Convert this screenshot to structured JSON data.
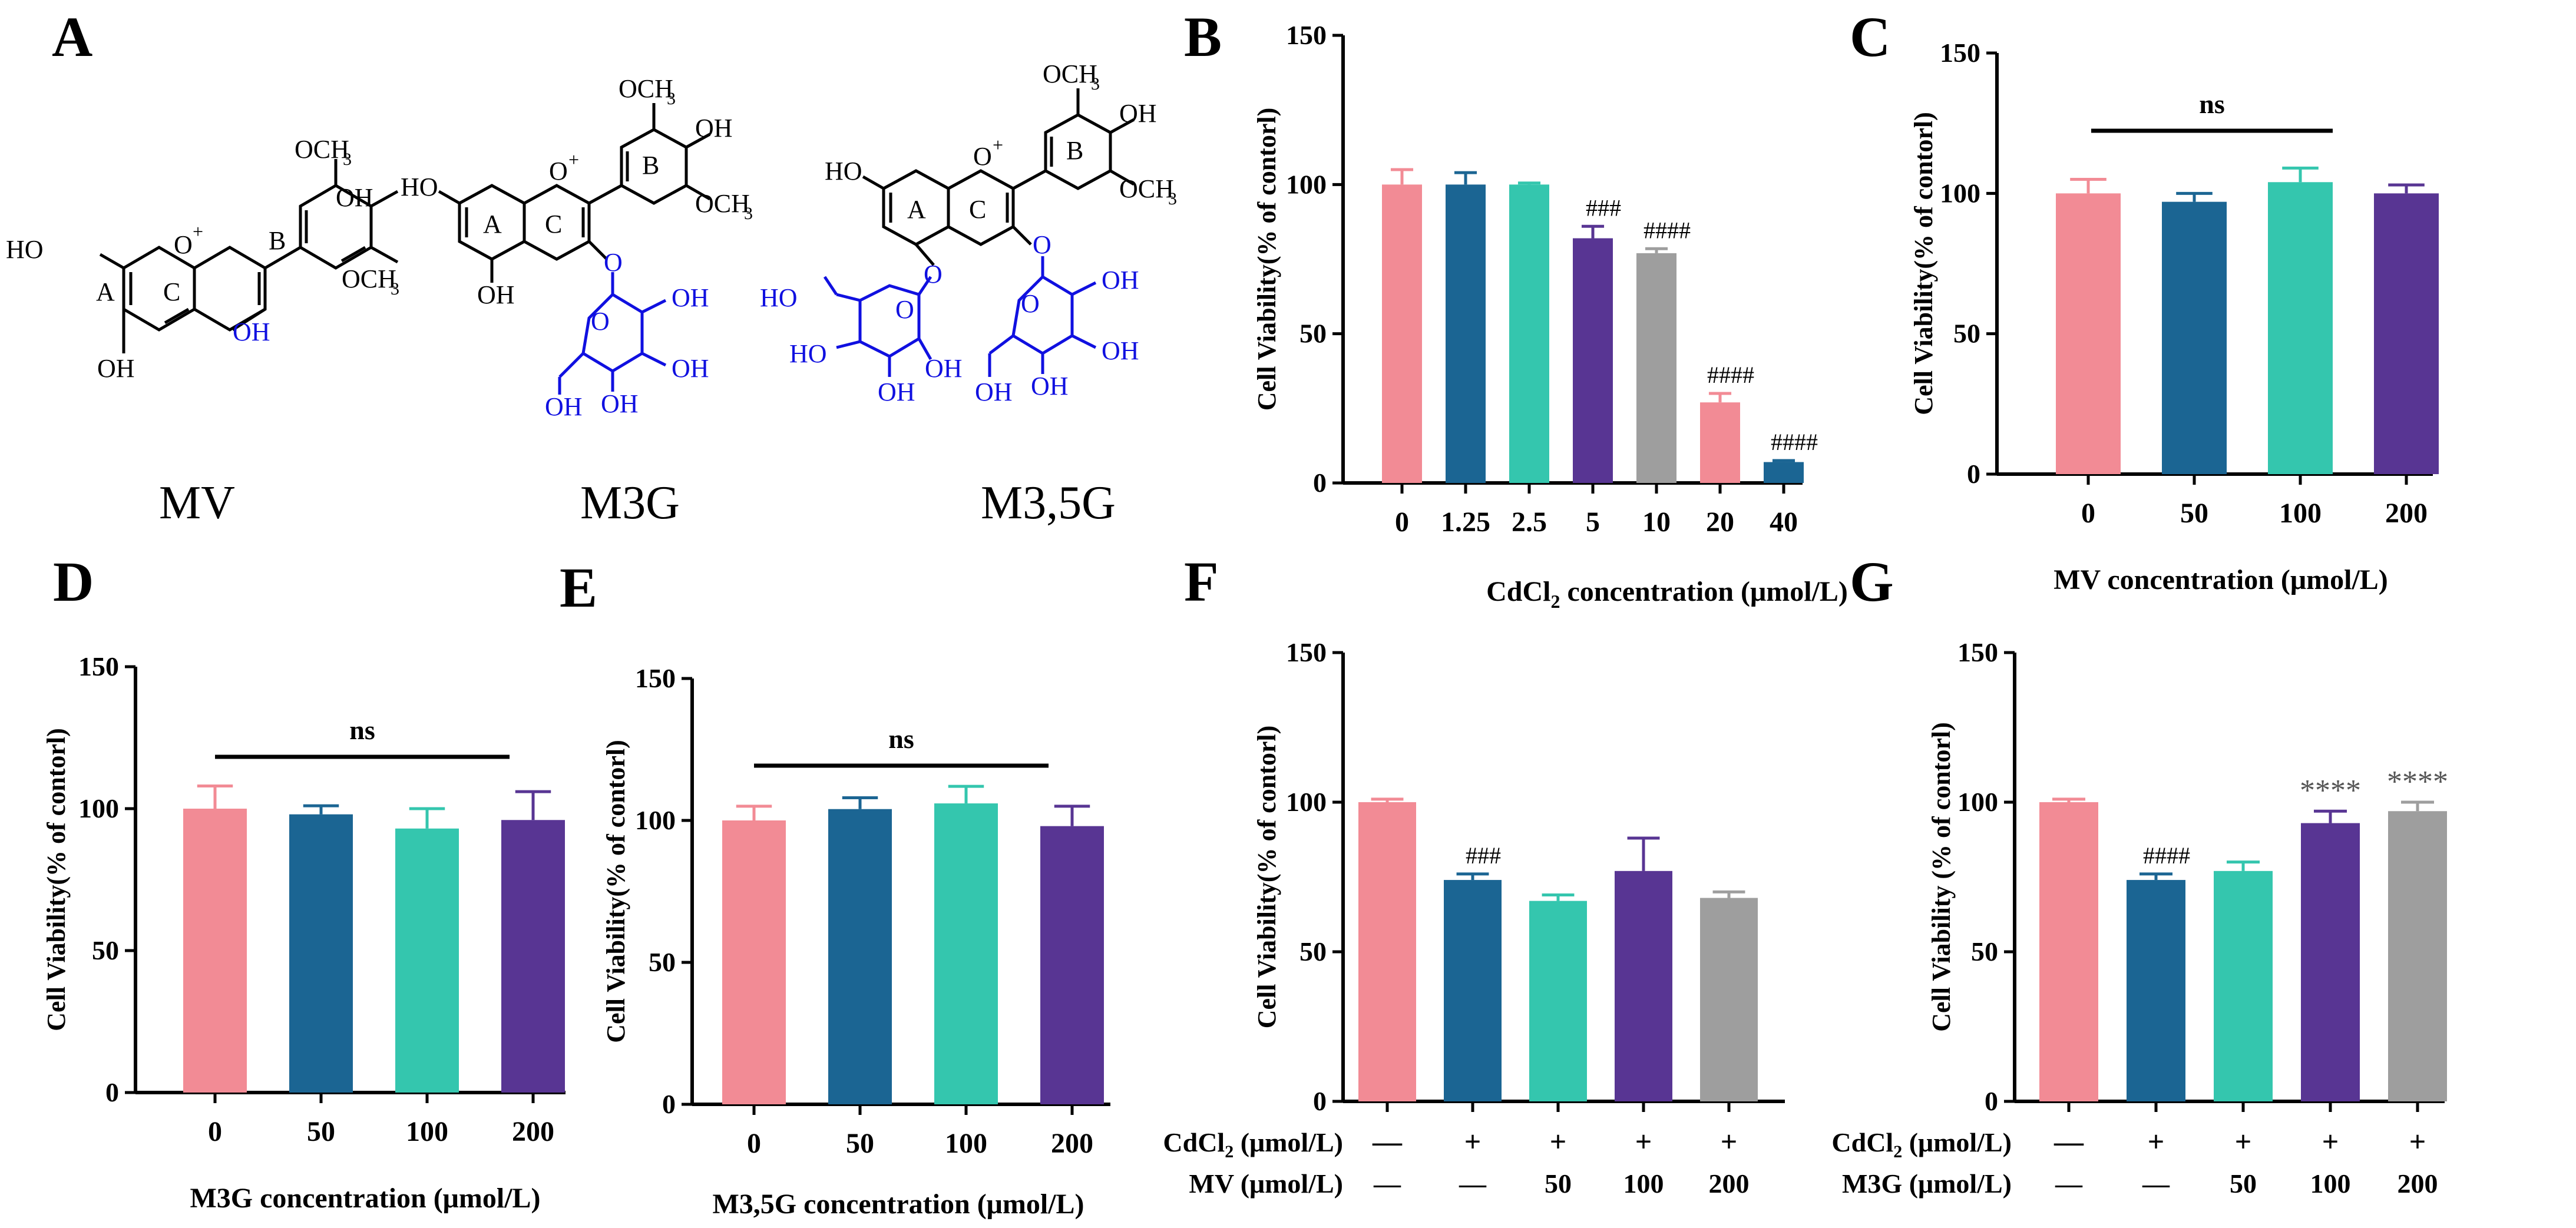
{
  "colors": {
    "pink": "#F28B95",
    "blue": "#1B6593",
    "teal": "#34C6AE",
    "purple": "#583593",
    "grey": "#9E9E9E",
    "axis": "#000000",
    "glycoside": "#1010E0"
  },
  "panel_a": {
    "letter": "A",
    "structures": [
      {
        "name": "MV",
        "atoms": {
          "och3_top": "OCH",
          "och3_top_sub": "3",
          "oh_b": "OH",
          "ho_a": "HO",
          "o_plus": "O",
          "plus": "+",
          "och3_right": "OCH",
          "och3_right_sub": "3",
          "oh_3": "OH",
          "oh_5": "OH",
          "ring_a": "A",
          "ring_b": "B",
          "ring_c": "C"
        }
      },
      {
        "name": "M3G",
        "atoms": {
          "och3_top": "OCH",
          "och3_top_sub": "3",
          "oh_b": "OH",
          "ho_a": "HO",
          "o_plus": "O",
          "plus": "+",
          "och3_right": "OCH",
          "och3_right_sub": "3",
          "oh_5": "OH",
          "o_link": "O",
          "ring_o": "O",
          "oh_1": "OH",
          "oh_2": "OH",
          "oh_3": "OH",
          "oh_4": "OH",
          "ring_a": "A",
          "ring_b": "B",
          "ring_c": "C"
        }
      },
      {
        "name": "M3,5G",
        "atoms": {
          "och3_top": "OCH",
          "och3_top_sub": "3",
          "oh_b": "OH",
          "ho_a": "HO",
          "o_plus": "O",
          "plus": "+",
          "och3_right": "OCH",
          "och3_right_sub": "3",
          "o_link3": "O",
          "o_link5": "O",
          "ring_o1": "O",
          "ring_o2": "O",
          "s1_ho": "HO",
          "s1_oh1": "OH",
          "s1_oh2": "OH",
          "s1_oh3": "HO",
          "s1_oh4": "OH",
          "s2_oh1": "OH",
          "s2_oh2": "OH",
          "s2_oh3": "OH",
          "s2_oh4": "OH",
          "ring_a": "A",
          "ring_b": "B",
          "ring_c": "C"
        }
      }
    ]
  },
  "chart_data": [
    {
      "panel": "B",
      "type": "bar",
      "ylabel": "Cell Viability(% of contorl)",
      "xlabel": "CdCl",
      "xlabel_sub": "2",
      "xlabel_rest": " concentration (μmol/L)",
      "ylim": [
        0,
        150
      ],
      "yticks": [
        "0",
        "50",
        "100",
        "150"
      ],
      "categories": [
        "0",
        "1.25",
        "2.5",
        "5",
        "10",
        "20",
        "40"
      ],
      "values": [
        100,
        100,
        100,
        82,
        77,
        27,
        7
      ],
      "errors": [
        5,
        4,
        0.5,
        4,
        1.5,
        3,
        0.5
      ],
      "colors": [
        "pink",
        "blue",
        "teal",
        "purple",
        "grey",
        "pink",
        "blue"
      ],
      "annotations": [
        "",
        "",
        "",
        "###",
        "####",
        "####",
        "####"
      ]
    },
    {
      "panel": "C",
      "type": "bar",
      "ylabel": "Cell Viability(% of contorl)",
      "xlabel": "MV concentration (μmol/L)",
      "ylim": [
        0,
        150
      ],
      "yticks": [
        "0",
        "50",
        "100",
        "150"
      ],
      "categories": [
        "0",
        "50",
        "100",
        "200"
      ],
      "values": [
        100,
        97,
        104,
        100
      ],
      "errors": [
        5,
        3,
        5,
        3
      ],
      "colors": [
        "pink",
        "blue",
        "teal",
        "purple"
      ],
      "ns": "ns"
    },
    {
      "panel": "D",
      "type": "bar",
      "ylabel": "Cell Viability(% of contorl)",
      "xlabel": "M3G concentration (μmol/L)",
      "ylim": [
        0,
        150
      ],
      "yticks": [
        "0",
        "50",
        "100",
        "150"
      ],
      "categories": [
        "0",
        "50",
        "100",
        "200"
      ],
      "values": [
        100,
        98,
        93,
        96
      ],
      "errors": [
        8,
        3,
        7,
        10
      ],
      "colors": [
        "pink",
        "blue",
        "teal",
        "purple"
      ],
      "ns": "ns"
    },
    {
      "panel": "E",
      "type": "bar",
      "ylabel": "Cell Viability(% of contorl)",
      "xlabel": "M3,5G concentration (μmol/L)",
      "ylim": [
        0,
        150
      ],
      "yticks": [
        "0",
        "50",
        "100",
        "150"
      ],
      "categories": [
        "0",
        "50",
        "100",
        "200"
      ],
      "values": [
        100,
        104,
        106,
        98
      ],
      "errors": [
        5,
        4,
        6,
        7
      ],
      "colors": [
        "pink",
        "blue",
        "teal",
        "purple"
      ],
      "ns": "ns"
    },
    {
      "panel": "F",
      "type": "bar",
      "ylabel": "Cell Viability(% of contorl)",
      "ylim": [
        0,
        150
      ],
      "yticks": [
        "0",
        "50",
        "100",
        "150"
      ],
      "row1_label": "CdCl",
      "row1_sub": "2",
      "row1_rest": " (μmol/L)",
      "row1": [
        "—",
        "+",
        "+",
        "+",
        "+"
      ],
      "row2_label": "MV (μmol/L)",
      "row2": [
        "—",
        "—",
        "50",
        "100",
        "200"
      ],
      "values": [
        100,
        74,
        67,
        77,
        68
      ],
      "errors": [
        1,
        2,
        2,
        11,
        2
      ],
      "colors": [
        "pink",
        "blue",
        "teal",
        "purple",
        "grey"
      ],
      "annotations": [
        "",
        "###",
        "",
        "",
        ""
      ]
    },
    {
      "panel": "G",
      "type": "bar",
      "ylabel": "Cell Viability (% of contorl)",
      "ylim": [
        0,
        150
      ],
      "yticks": [
        "0",
        "50",
        "100",
        "150"
      ],
      "row1_label": "CdCl",
      "row1_sub": "2",
      "row1_rest": " (μmol/L)",
      "row1": [
        "—",
        "+",
        "+",
        "+",
        "+"
      ],
      "row2_label": "M3G (μmol/L)",
      "row2": [
        "—",
        "—",
        "50",
        "100",
        "200"
      ],
      "values": [
        100,
        74,
        77,
        93,
        97
      ],
      "errors": [
        1,
        2,
        3,
        4,
        3
      ],
      "colors": [
        "pink",
        "blue",
        "teal",
        "purple",
        "grey"
      ],
      "annotations": [
        "",
        "####",
        "",
        "****",
        "****"
      ]
    }
  ]
}
